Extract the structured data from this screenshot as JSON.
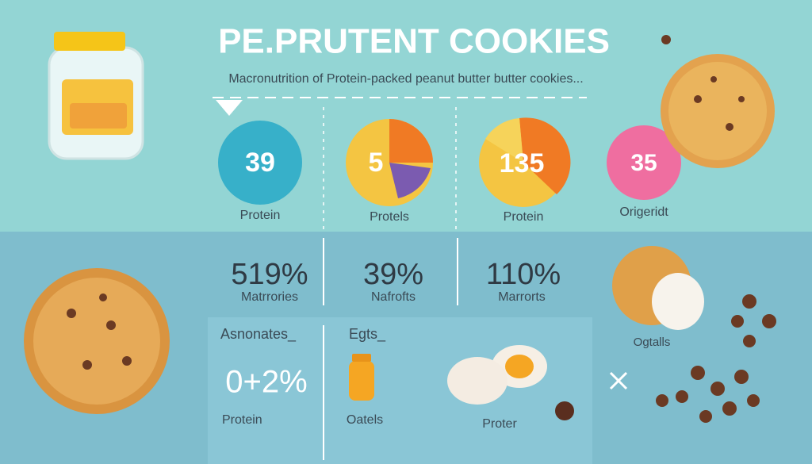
{
  "header": {
    "title": "PE.PRUTENT COOKIES",
    "subtitle": "Macronutrition of Protein-packed peanut butter butter cookies..."
  },
  "top_stats": [
    {
      "value": "39",
      "label": "Protein"
    },
    {
      "value": "5",
      "label": "Protels"
    },
    {
      "value": "135",
      "label": "Protein"
    },
    {
      "value": "35",
      "label": "Origeridt"
    }
  ],
  "middle_stats": [
    {
      "value": "519%",
      "label": "Matrrories"
    },
    {
      "value": "39%",
      "label": "Nafrofts"
    },
    {
      "value": "110%",
      "label": "Marrorts"
    }
  ],
  "bottom_panel": {
    "left": {
      "heading": "Asnonates_",
      "value": "0+2%",
      "label": "Protein"
    },
    "middle": {
      "heading": "Egts_",
      "label": "Oatels"
    },
    "right": {
      "label": "Proter"
    }
  },
  "side_label": "Ogtalls"
}
